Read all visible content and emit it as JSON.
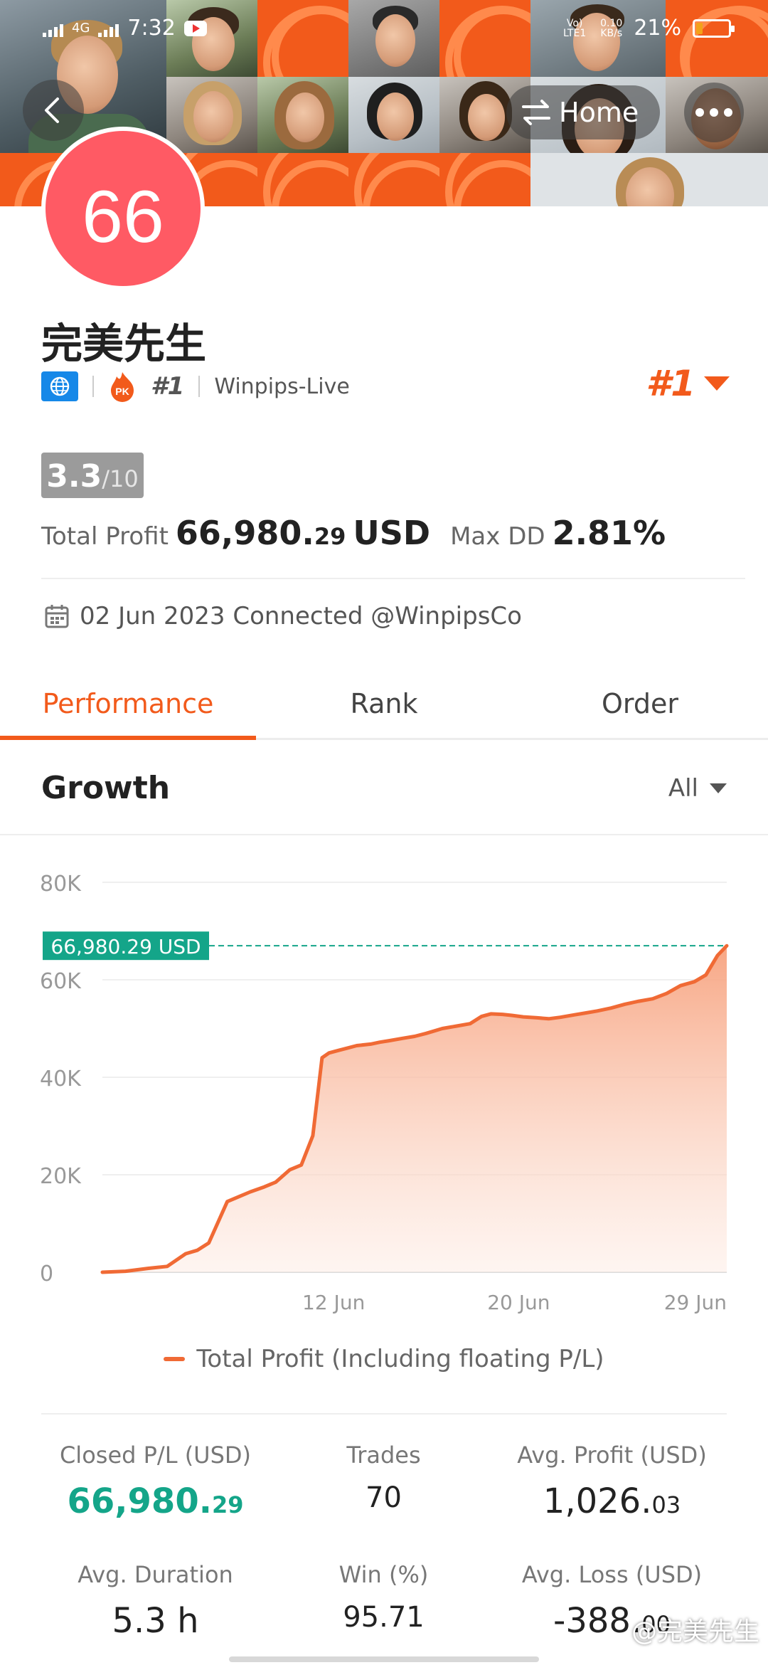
{
  "status_bar": {
    "network": "4G",
    "time": "7:32",
    "volte": "Vo) LTE1",
    "speed_value": "0.10",
    "speed_unit": "KB/s",
    "battery": "21%",
    "battery_level": 0.21
  },
  "nav": {
    "home_label": "Home"
  },
  "profile": {
    "avatar_number": "66",
    "name": "完美先生",
    "pk_rank": "#1",
    "broker": "Winpips-Live",
    "rank": "#1",
    "score": "3.3",
    "score_max": "/10",
    "total_profit_label": "Total Profit",
    "total_profit_main": "66,980.",
    "total_profit_cents": "29",
    "total_profit_unit": "USD",
    "max_dd_label": "Max DD",
    "max_dd_value": "2.81%",
    "connected_text": "02 Jun 2023 Connected @WinpipsCo"
  },
  "tabs": [
    {
      "label": "Performance",
      "active": true
    },
    {
      "label": "Rank",
      "active": false
    },
    {
      "label": "Order",
      "active": false
    }
  ],
  "growth": {
    "title": "Growth",
    "filter": "All"
  },
  "chart_data": {
    "type": "area",
    "title": "",
    "xlabel": "",
    "ylabel": "",
    "y_ticks": [
      "0",
      "20K",
      "40K",
      "60K",
      "80K"
    ],
    "ylim": [
      0,
      80000
    ],
    "x_ticks": [
      "12 Jun",
      "20 Jun",
      "29 Jun"
    ],
    "x_tick_positions": [
      12,
      20,
      29
    ],
    "xlim": [
      2,
      29
    ],
    "current_value_label": "66,980.29 USD",
    "current_value": 66980.29,
    "series": [
      {
        "name": "Total Profit (Including floating P/L)",
        "x": [
          2,
          3,
          4,
          4.8,
          5.6,
          6.1,
          6.6,
          7.4,
          7.9,
          8.4,
          9.0,
          9.5,
          10.1,
          10.6,
          11.1,
          11.5,
          11.8,
          12.2,
          12.6,
          13.0,
          13.6,
          14.0,
          14.4,
          15.0,
          15.5,
          16.0,
          16.7,
          17.3,
          17.9,
          18.4,
          18.8,
          19.3,
          19.7,
          20.2,
          20.8,
          21.3,
          21.8,
          22.4,
          22.9,
          23.4,
          24.0,
          24.6,
          25.2,
          25.8,
          26.4,
          27.0,
          27.6,
          28.1,
          28.6,
          29.0
        ],
        "values": [
          0,
          200,
          800,
          1200,
          3800,
          4500,
          6000,
          14500,
          15500,
          16500,
          17500,
          18500,
          21000,
          22000,
          28000,
          44000,
          45000,
          45500,
          46000,
          46500,
          46800,
          47200,
          47500,
          48000,
          48400,
          49000,
          50000,
          50500,
          51000,
          52500,
          53000,
          52900,
          52700,
          52400,
          52200,
          52000,
          52300,
          52800,
          53200,
          53600,
          54200,
          55000,
          55600,
          56100,
          57200,
          58800,
          59600,
          61000,
          65000,
          66980.29
        ]
      }
    ]
  },
  "stats": [
    {
      "label": "Closed P/L (USD)",
      "main": "66,980.",
      "cents": "29",
      "green": true
    },
    {
      "label": "Trades",
      "main": "70",
      "cents": "",
      "green": false
    },
    {
      "label": "Avg. Profit (USD)",
      "main": "1,026.",
      "cents": "03",
      "green": false
    },
    {
      "label": "Avg. Duration",
      "main": "5.3 h",
      "cents": "",
      "green": false
    },
    {
      "label": "Win (%)",
      "main": "95.71",
      "cents": "",
      "green": false
    },
    {
      "label": "Avg. Loss (USD)",
      "main": "-388.",
      "cents": "00",
      "green": false
    }
  ],
  "watermark": "@完美先生",
  "colors": {
    "accent": "#f25a1b",
    "line": "#f06a35",
    "green": "#14a589",
    "avatar": "#ff5a64"
  }
}
